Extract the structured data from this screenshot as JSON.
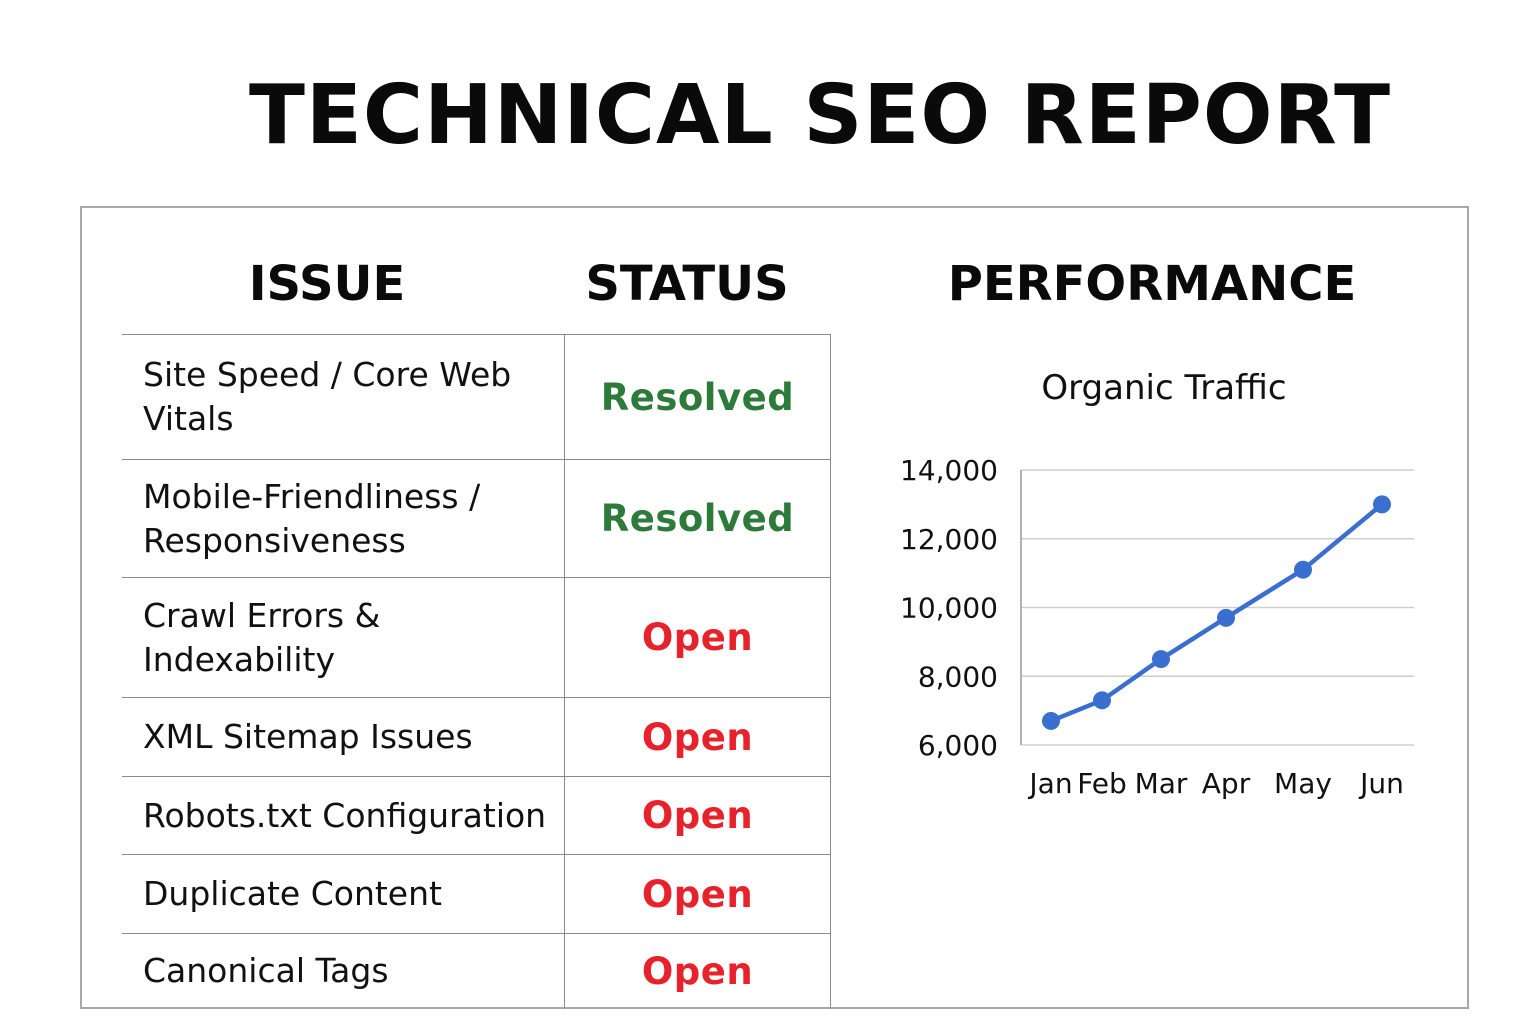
{
  "title": "TECHNICAL SEO REPORT",
  "headers": {
    "issue": "ISSUE",
    "status": "STATUS",
    "performance": "PERFORMANCE"
  },
  "status_colors": {
    "Resolved": "#2d7a3a",
    "Open": "#e8222a"
  },
  "rows": [
    {
      "issue": "Site Speed / Core Web Vitals",
      "status": "Resolved"
    },
    {
      "issue": "Mobile-Friendliness / Responsiveness",
      "status": "Resolved"
    },
    {
      "issue": "Crawl Errors & Indexability",
      "status": "Open"
    },
    {
      "issue": "XML Sitemap Issues",
      "status": "Open"
    },
    {
      "issue": "Robots.txt Configuration",
      "status": "Open"
    },
    {
      "issue": "Duplicate Content",
      "status": "Open"
    },
    {
      "issue": "Canonical Tags",
      "status": "Open"
    }
  ],
  "chart_data": {
    "type": "line",
    "title": "Organic Traffic",
    "xlabel": "",
    "ylabel": "",
    "categories": [
      "Jan",
      "Feb",
      "Mar",
      "Apr",
      "May",
      "Jun"
    ],
    "values": [
      6700,
      7300,
      8500,
      9700,
      11100,
      13000
    ],
    "ylim": [
      6000,
      14000
    ],
    "yticks": [
      6000,
      8000,
      10000,
      12000,
      14000
    ],
    "ytick_labels": [
      "6,000",
      "8,000",
      "10,000",
      "12,000",
      "14,000"
    ],
    "grid": "horizontal",
    "line_color": "#3a6fd0"
  }
}
